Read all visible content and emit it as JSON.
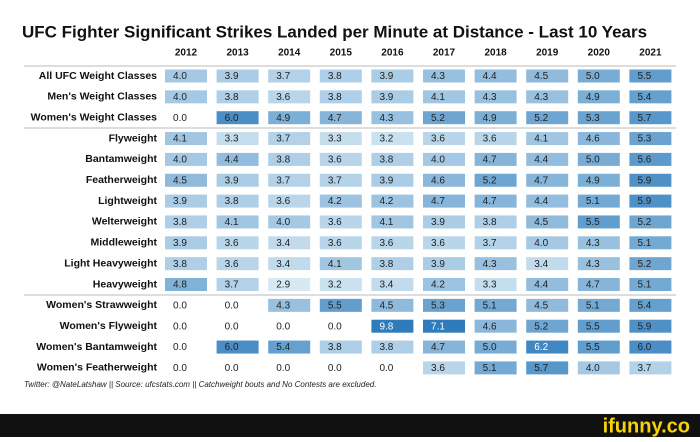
{
  "chart_data": {
    "type": "heatmap",
    "title": "UFC Fighter Significant Strikes Landed per Minute at Distance - Last 10 Years",
    "x": [
      2012,
      2013,
      2014,
      2015,
      2016,
      2017,
      2018,
      2019,
      2020,
      2021
    ],
    "categories": [
      "All UFC Weight Classes",
      "Men's Weight Classes",
      "Women's Weight Classes",
      "Flyweight",
      "Bantamweight",
      "Featherweight",
      "Lightweight",
      "Welterweight",
      "Middleweight",
      "Light Heavyweight",
      "Heavyweight",
      "Women's Strawweight",
      "Women's Flyweight",
      "Women's Bantamweight",
      "Women's Featherweight"
    ],
    "values": [
      [
        4.0,
        3.9,
        3.7,
        3.8,
        3.9,
        4.3,
        4.4,
        4.5,
        5.0,
        5.5
      ],
      [
        4.0,
        3.8,
        3.6,
        3.8,
        3.9,
        4.1,
        4.3,
        4.3,
        4.9,
        5.4
      ],
      [
        0.0,
        6.0,
        4.9,
        4.7,
        4.3,
        5.2,
        4.9,
        5.2,
        5.3,
        5.7
      ],
      [
        4.1,
        3.3,
        3.7,
        3.3,
        3.2,
        3.6,
        3.6,
        4.1,
        4.6,
        5.3
      ],
      [
        4.0,
        4.4,
        3.8,
        3.6,
        3.8,
        4.0,
        4.7,
        4.4,
        5.0,
        5.6
      ],
      [
        4.5,
        3.9,
        3.7,
        3.7,
        3.9,
        4.6,
        5.2,
        4.7,
        4.9,
        5.9
      ],
      [
        3.9,
        3.8,
        3.6,
        4.2,
        4.2,
        4.7,
        4.7,
        4.4,
        5.1,
        5.9
      ],
      [
        3.8,
        4.1,
        4.0,
        3.6,
        4.1,
        3.9,
        3.8,
        4.5,
        5.5,
        5.2
      ],
      [
        3.9,
        3.6,
        3.4,
        3.6,
        3.6,
        3.6,
        3.7,
        4.0,
        4.3,
        5.1
      ],
      [
        3.8,
        3.6,
        3.4,
        4.1,
        3.8,
        3.9,
        4.3,
        3.4,
        4.3,
        5.2
      ],
      [
        4.8,
        3.7,
        2.9,
        3.2,
        3.4,
        4.2,
        3.3,
        4.4,
        4.7,
        5.1
      ],
      [
        0.0,
        0.0,
        4.3,
        5.5,
        4.5,
        5.3,
        5.1,
        4.5,
        5.1,
        5.4
      ],
      [
        0.0,
        0.0,
        0.0,
        0.0,
        9.8,
        7.1,
        4.6,
        5.2,
        5.5,
        5.9
      ],
      [
        0.0,
        6.0,
        5.4,
        3.8,
        3.8,
        4.7,
        5.0,
        6.2,
        5.5,
        6.0
      ],
      [
        0.0,
        0.0,
        0.0,
        0.0,
        0.0,
        3.6,
        5.1,
        5.7,
        4.0,
        3.7
      ]
    ],
    "value_labels": [
      [
        "4.0",
        "3.9",
        "3.7",
        "3.8",
        "3.9",
        "4.3",
        "4.4",
        "4.5",
        "5.0",
        "5.5"
      ],
      [
        "4.0",
        "3.8",
        "3.6",
        "3.8",
        "3.9",
        "4.1",
        "4.3",
        "4.3",
        "4.9",
        "5.4"
      ],
      [
        "0.0",
        "6.0",
        "4.9",
        "4.7",
        "4.3",
        "5.2",
        "4.9",
        "5.2",
        "5.3",
        "5.7"
      ],
      [
        "4.1",
        "3.3",
        "3.7",
        "3.3",
        "3.2",
        "3.6",
        "3.6",
        "4.1",
        "4.6",
        "5.3"
      ],
      [
        "4.0",
        "4.4",
        "3.8",
        "3.6",
        "3.8",
        "4.0",
        "4.7",
        "4.4",
        "5.0",
        "5.6"
      ],
      [
        "4.5",
        "3.9",
        "3.7",
        "3.7",
        "3.9",
        "4.6",
        "5.2",
        "4.7",
        "4.9",
        "5.9"
      ],
      [
        "3.9",
        "3.8",
        "3.6",
        "4.2",
        "4.2",
        "4.7",
        "4.7",
        "4.4",
        "5.1",
        "5.9"
      ],
      [
        "3.8",
        "4.1",
        "4.0",
        "3.6",
        "4.1",
        "3.9",
        "3.8",
        "4.5",
        "5.5",
        "5.2"
      ],
      [
        "3.9",
        "3.6",
        "3.4",
        "3.6",
        "3.6",
        "3.6",
        "3.7",
        "4.0",
        "4.3",
        "5.1"
      ],
      [
        "3.8",
        "3.6",
        "3.4",
        "4.1",
        "3.8",
        "3.9",
        "4.3",
        "3.4",
        "4.3",
        "5.2"
      ],
      [
        "4.8",
        "3.7",
        "2.9",
        "3.2",
        "3.4",
        "4.2",
        "3.3",
        "4.4",
        "4.7",
        "5.1"
      ],
      [
        "0.0",
        "0.0",
        "4.3",
        "5.5",
        "4.5",
        "5.3",
        "5.1",
        "4.5",
        "5.1",
        "5.4"
      ],
      [
        "0.0",
        "0.0",
        "0.0",
        "0.0",
        "9.8",
        "7.1",
        "4.6",
        "5.2",
        "5.5",
        "5.9"
      ],
      [
        "0.0",
        "6.0",
        "5.4",
        "3.8",
        "3.8",
        "4.7",
        "5.0",
        "6.2",
        "5.5",
        "6.0"
      ],
      [
        "0.0",
        "0.0",
        "0.0",
        "0.0",
        "0.0",
        "3.6",
        "5.1",
        "5.7",
        "4.0",
        "3.7"
      ]
    ],
    "colors": [
      "#dcedf6",
      "#2f7cbc"
    ],
    "caption": "Twitter: @NateLatshaw || Source: ufcstats.com || Catchweight bouts and No Contests are excluded.",
    "watermark": "ifunny.co"
  }
}
